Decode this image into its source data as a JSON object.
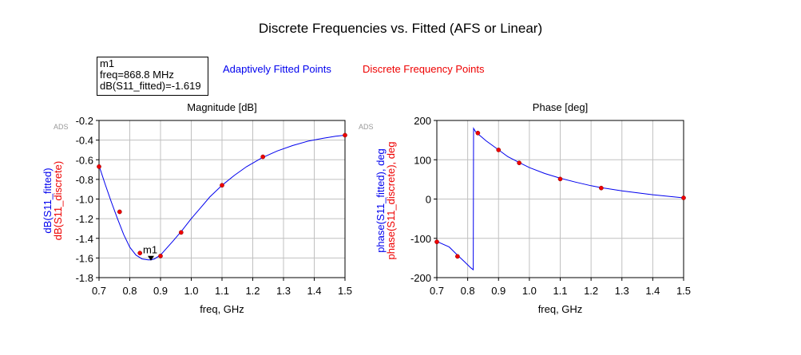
{
  "title": "Discrete Frequencies vs. Fitted (AFS or Linear)",
  "legend": {
    "fitted": "Adaptively Fitted Points",
    "discrete": "Discrete Frequency Points"
  },
  "marker_box": {
    "name": "m1",
    "freq": "freq=868.8 MHz",
    "value": "dB(S11_fitted)=-1.619"
  },
  "colors": {
    "fitted": "#0000ee",
    "discrete": "#ee0000",
    "grid": "#c0c0c0"
  },
  "chart_data": [
    {
      "type": "line",
      "title": "Magnitude [dB]",
      "watermark": "ADS",
      "xlabel": "freq, GHz",
      "ylabel_fitted": "dB(S11_fitted)",
      "ylabel_discrete": "dB(S11_discrete)",
      "xlim": [
        0.7,
        1.5
      ],
      "ylim": [
        -1.8,
        -0.2
      ],
      "xticks": [
        "0.7",
        "0.8",
        "0.9",
        "1.0",
        "1.1",
        "1.2",
        "1.3",
        "1.4",
        "1.5"
      ],
      "yticks": [
        "-0.2",
        "-0.4",
        "-0.6",
        "-0.8",
        "-1.0",
        "-1.2",
        "-1.4",
        "-1.6",
        "-1.8"
      ],
      "grid": true,
      "series": [
        {
          "name": "Adaptively Fitted Points",
          "x": [
            0.7,
            0.72,
            0.74,
            0.76,
            0.78,
            0.8,
            0.82,
            0.84,
            0.86,
            0.8688,
            0.88,
            0.9,
            0.92,
            0.94,
            0.97,
            1.0,
            1.03,
            1.06,
            1.1,
            1.14,
            1.18,
            1.23,
            1.28,
            1.33,
            1.38,
            1.43,
            1.47,
            1.5
          ],
          "y": [
            -0.66,
            -0.85,
            -1.03,
            -1.2,
            -1.36,
            -1.49,
            -1.57,
            -1.61,
            -1.62,
            -1.619,
            -1.61,
            -1.57,
            -1.5,
            -1.43,
            -1.32,
            -1.2,
            -1.09,
            -0.98,
            -0.86,
            -0.76,
            -0.67,
            -0.58,
            -0.51,
            -0.455,
            -0.41,
            -0.38,
            -0.36,
            -0.35
          ]
        },
        {
          "name": "Discrete Frequency Points",
          "x": [
            0.7,
            0.767,
            0.833,
            0.9,
            0.967,
            1.1,
            1.233,
            1.5
          ],
          "y": [
            -0.67,
            -1.13,
            -1.55,
            -1.58,
            -1.34,
            -0.86,
            -0.57,
            -0.35
          ]
        }
      ],
      "marker": {
        "label": "m1",
        "x": 0.8688,
        "y": -1.619
      }
    },
    {
      "type": "line",
      "title": "Phase [deg]",
      "watermark": "ADS",
      "xlabel": "freq, GHz",
      "ylabel_fitted": "phase(S11_fitted), deg",
      "ylabel_discrete": "phase(S11_discrete), deg",
      "xlim": [
        0.7,
        1.5
      ],
      "ylim": [
        -200,
        200
      ],
      "xticks": [
        "0.7",
        "0.8",
        "0.9",
        "1.0",
        "1.1",
        "1.2",
        "1.3",
        "1.4",
        "1.5"
      ],
      "yticks": [
        "200",
        "100",
        "0",
        "-100",
        "-200"
      ],
      "grid": true,
      "series": [
        {
          "name": "Adaptively Fitted Points",
          "x": [
            0.7,
            0.74,
            0.767,
            0.79,
            0.81,
            0.818,
            0.819,
            0.825,
            0.833,
            0.86,
            0.9,
            0.93,
            0.967,
            1.0,
            1.05,
            1.1,
            1.15,
            1.2,
            1.233,
            1.3,
            1.4,
            1.5
          ],
          "y": [
            -108,
            -122,
            -143,
            -160,
            -175,
            -180,
            180,
            172,
            166,
            148,
            125,
            108,
            93,
            80,
            65,
            53,
            43,
            34,
            29,
            21,
            11,
            3
          ]
        },
        {
          "name": "Discrete Frequency Points",
          "x": [
            0.7,
            0.767,
            0.833,
            0.9,
            0.967,
            1.1,
            1.233,
            1.5
          ],
          "y": [
            -109,
            -146,
            168,
            125,
            92,
            51,
            28,
            3
          ]
        }
      ]
    }
  ]
}
